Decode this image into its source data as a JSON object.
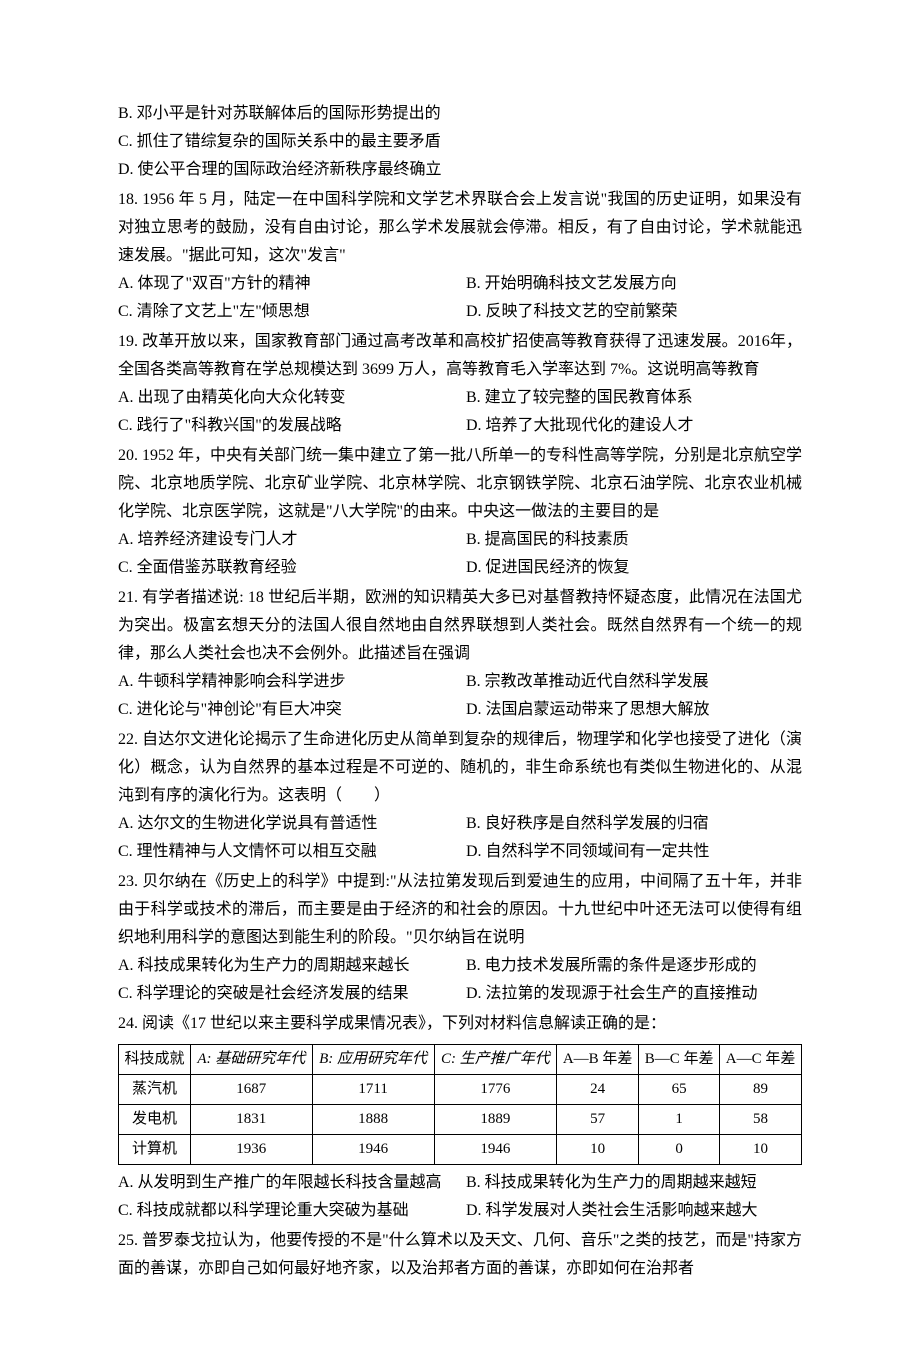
{
  "page": {
    "background_color": "#ffffff",
    "text_color": "#000000",
    "font_family": "SimSun",
    "body_fontsize": 16,
    "line_height": 1.75
  },
  "frag17": {
    "optB": "B. 邓小平是针对苏联解体后的国际形势提出的",
    "optC": "C. 抓住了错综复杂的国际关系中的最主要矛盾",
    "optD": "D. 使公平合理的国际政治经济新秩序最终确立"
  },
  "q18": {
    "stem": "18. 1956 年 5 月，陆定一在中国科学院和文学艺术界联合会上发言说\"我国的历史证明，如果没有对独立思考的鼓励，没有自由讨论，那么学术发展就会停滞。相反，有了自由讨论，学术就能迅速发展。\"据此可知，这次\"发言\"",
    "optA": "A. 体现了\"双百\"方针的精神",
    "optB": "B. 开始明确科技文艺发展方向",
    "optC": "C. 清除了文艺上\"左\"倾思想",
    "optD": "D. 反映了科技文艺的空前繁荣"
  },
  "q19": {
    "stem": "19. 改革开放以来，国家教育部门通过高考改革和高校扩招使高等教育获得了迅速发展。2016年，全国各类高等教育在学总规模达到 3699 万人，高等教育毛入学率达到 7%。这说明高等教育",
    "optA": "A. 出现了由精英化向大众化转变",
    "optB": "B. 建立了较完整的国民教育体系",
    "optC": "C. 践行了\"科教兴国\"的发展战略",
    "optD": "D. 培养了大批现代化的建设人才"
  },
  "q20": {
    "stem": "20. 1952 年，中央有关部门统一集中建立了第一批八所单一的专科性高等学院，分别是北京航空学院、北京地质学院、北京矿业学院、北京林学院、北京钢铁学院、北京石油学院、北京农业机械化学院、北京医学院，这就是\"八大学院\"的由来。中央这一做法的主要目的是",
    "optA": "A. 培养经济建设专门人才",
    "optB": "B. 提高国民的科技素质",
    "optC": " C. 全面借鉴苏联教育经验",
    "optD": "D. 促进国民经济的恢复"
  },
  "q21": {
    "stem": "21. 有学者描述说: 18 世纪后半期，欧洲的知识精英大多已对基督教持怀疑态度，此情况在法国尤为突出。极富玄想天分的法国人很自然地由自然界联想到人类社会。既然自然界有一个统一的规律，那么人类社会也决不会例外。此描述旨在强调",
    "optA": "A. 牛顿科学精神影响会科学进步",
    "optB": "B. 宗教改革推动近代自然科学发展",
    "optC": "C. 进化论与\"神创论\"有巨大冲突",
    "optD": "D. 法国启蒙运动带来了思想大解放"
  },
  "q22": {
    "stem": "22. 自达尔文进化论揭示了生命进化历史从简单到复杂的规律后，物理学和化学也接受了进化（演化）概念，认为自然界的基本过程是不可逆的、随机的，非生命系统也有类似生物进化的、从混沌到有序的演化行为。这表明（　　）",
    "optA": "A. 达尔文的生物进化学说具有普适性",
    "optB": "B. 良好秩序是自然科学发展的归宿",
    "optC": "C. 理性精神与人文情怀可以相互交融",
    "optD": "D. 自然科学不同领域间有一定共性"
  },
  "q23": {
    "stem": "23. 贝尔纳在《历史上的科学》中提到:\"从法拉第发现后到爱迪生的应用，中间隔了五十年，并非由于科学或技术的滞后，而主要是由于经济的和社会的原因。十九世纪中叶还无法可以使得有组织地利用科学的意图达到能生利的阶段。\"贝尔纳旨在说明",
    "optA": "A. 科技成果转化为生产力的周期越来越长",
    "optB": "B. 电力技术发展所需的条件是逐步形成的",
    "optC": "C. 科学理论的突破是社会经济发展的结果",
    "optD": "D. 法拉第的发现源于社会生产的直接推动"
  },
  "q24": {
    "stem": "24. 阅读《17 世纪以来主要科学成果情况表》，下列对材料信息解读正确的是：",
    "table": {
      "type": "table",
      "border_color": "#000000",
      "cell_fontsize": 15,
      "headers": [
        "科技成就",
        "A: 基础研究年代",
        "B: 应用研究年代",
        "C: 生产推广年代",
        "A—B 年差",
        "B—C 年差",
        "A—C 年差"
      ],
      "rows": [
        [
          "蒸汽机",
          "1687",
          "1711",
          "1776",
          "24",
          "65",
          "89"
        ],
        [
          "发电机",
          "1831",
          "1888",
          "1889",
          "57",
          "1",
          "58"
        ],
        [
          "计算机",
          "1936",
          "1946",
          "1946",
          "10",
          "0",
          "10"
        ]
      ],
      "col_align": [
        "center",
        "center",
        "center",
        "center",
        "center",
        "center",
        "center"
      ]
    },
    "optA": "A. 从发明到生产推广的年限越长科技含量越高",
    "optB": "B. 科技成果转化为生产力的周期越来越短",
    "optC": "C. 科技成就都以科学理论重大突破为基础",
    "optD": "D. 科学发展对人类社会生活影响越来越大"
  },
  "q25": {
    "stem": "25. 普罗泰戈拉认为，他要传授的不是\"什么算术以及天文、几何、音乐\"之类的技艺，而是\"持家方面的善谋，亦即自己如何最好地齐家，以及治邦者方面的善谋，亦即如何在治邦者"
  }
}
